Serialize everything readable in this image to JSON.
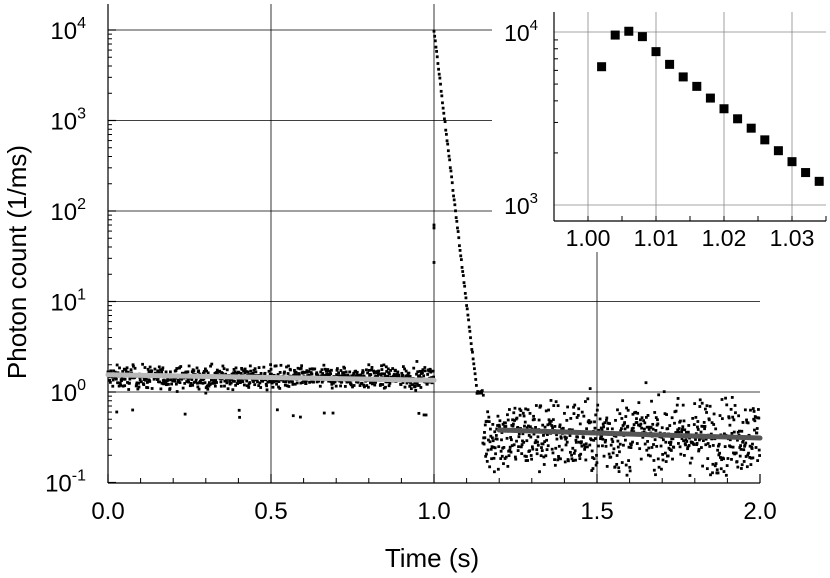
{
  "chart_data": [
    {
      "id": "main",
      "type": "scatter",
      "xlabel": "Time (s)",
      "ylabel": "Photon count (1/ms)",
      "xlim": [
        0.0,
        2.0
      ],
      "ylim": [
        0.1,
        10000
      ],
      "yscale": "log",
      "grid": true,
      "x_ticks": [
        0.0,
        0.5,
        1.0,
        1.5,
        2.0
      ],
      "x_tick_labels": [
        "0.0",
        "0.5",
        "1.0",
        "1.5",
        "2.0"
      ],
      "y_tick_labels": [
        {
          "base": "10",
          "exp": "-1",
          "value": 0.1
        },
        {
          "base": "10",
          "exp": "0",
          "value": 1
        },
        {
          "base": "10",
          "exp": "1",
          "value": 10
        },
        {
          "base": "10",
          "exp": "2",
          "value": 100
        },
        {
          "base": "10",
          "exp": "3",
          "value": 1000
        },
        {
          "base": "10",
          "exp": "4",
          "value": 10000
        }
      ],
      "segments": [
        {
          "x_range": [
            0.0,
            1.0
          ],
          "mean": 1.45,
          "log10_spread": 0.06
        },
        {
          "x_range": [
            1.0,
            1.15
          ],
          "decay_from": 10000,
          "decay_to": 1.0
        },
        {
          "x_range": [
            1.15,
            2.0
          ],
          "mean": 0.33,
          "log10_spread": 0.2
        }
      ],
      "fit_lines": [
        {
          "color": "#b8b8b8",
          "points": [
            [
              0.0,
              1.55
            ],
            [
              1.0,
              1.35
            ]
          ]
        },
        {
          "color": "#555555",
          "points": [
            [
              1.2,
              0.38
            ],
            [
              2.0,
              0.31
            ]
          ]
        }
      ]
    },
    {
      "id": "inset",
      "type": "scatter",
      "xlim": [
        0.995,
        1.035
      ],
      "ylim": [
        900,
        13000
      ],
      "yscale": "log",
      "grid": true,
      "x_ticks": [
        1.0,
        1.01,
        1.02,
        1.03
      ],
      "x_tick_labels": [
        "1.00",
        "1.01",
        "1.02",
        "1.03"
      ],
      "y_tick_labels": [
        {
          "base": "10",
          "exp": "3",
          "value": 1000
        },
        {
          "base": "10",
          "exp": "4",
          "value": 10000
        }
      ],
      "x": [
        1.002,
        1.004,
        1.006,
        1.008,
        1.01,
        1.012,
        1.014,
        1.016,
        1.018,
        1.02,
        1.022,
        1.024,
        1.026,
        1.028,
        1.03,
        1.032,
        1.034
      ],
      "y": [
        6300,
        9600,
        10100,
        9400,
        7700,
        6500,
        5500,
        4850,
        4150,
        3600,
        3150,
        2780,
        2380,
        2060,
        1780,
        1540,
        1370
      ]
    }
  ]
}
